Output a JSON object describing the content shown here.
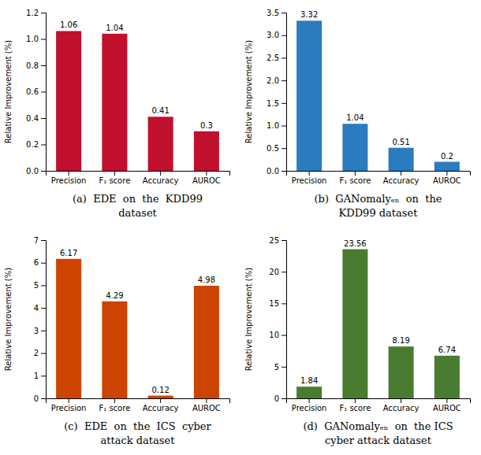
{
  "chart_data": [
    {
      "type": "bar",
      "title": "(a)  EDE  on  the  KDD99\ndataset",
      "categories": [
        "Precision",
        "F₁ score",
        "Accuracy",
        "AUROC"
      ],
      "values": [
        1.06,
        1.04,
        0.41,
        0.3
      ],
      "color": "#C0102E",
      "ylabel": "Relative Improvement (%)",
      "ylim": [
        0,
        1.2
      ],
      "yticks": [
        {
          "value": 0,
          "label": "0.0"
        },
        0.2,
        0.4,
        0.6,
        0.8,
        {
          "value": 1,
          "label": "1.0"
        },
        1.2
      ],
      "data_labels": true,
      "grid": false
    },
    {
      "type": "bar",
      "title": "(b)  GANomalyₑₙ  on  the\nKDD99 dataset",
      "categories": [
        "Precision",
        "F₁ score",
        "Accuracy",
        "AUROC"
      ],
      "values": [
        3.32,
        1.04,
        0.51,
        0.2
      ],
      "color": "#2b7bbf",
      "ylabel": "Relative Improvement (%)",
      "ylim": [
        0,
        3.5
      ],
      "yticks": [
        {
          "value": 0,
          "label": "0.0"
        },
        0.5,
        {
          "value": 1,
          "label": "1.0"
        },
        1.5,
        {
          "value": 2,
          "label": "2.0"
        },
        2.5,
        {
          "value": 3,
          "label": "3.0"
        },
        3.5
      ],
      "data_labels": true,
      "grid": false
    },
    {
      "type": "bar",
      "title": "(c)  EDE  on  the  ICS  cyber\nattack dataset",
      "categories": [
        "Precision",
        "F₁ score",
        "Accuracy",
        "AUROC"
      ],
      "values": [
        6.17,
        4.29,
        0.12,
        4.98
      ],
      "color": "#CC4400",
      "ylabel": "Relative Improvement (%)",
      "ylim": [
        0,
        7
      ],
      "yticks": [
        0,
        1,
        2,
        3,
        4,
        5,
        6,
        7
      ],
      "data_labels": true,
      "grid": false
    },
    {
      "type": "bar",
      "title": "(d)  GANomalyₑₙ  on  the ICS\ncyber attack dataset",
      "categories": [
        "Precision",
        "F₁ score",
        "Accuracy",
        "AUROC"
      ],
      "values": [
        1.84,
        23.56,
        8.19,
        6.74
      ],
      "color": "#4a7c2f",
      "ylabel": "Relative Improvement (%)",
      "ylim": [
        0,
        25
      ],
      "yticks": [
        0,
        5,
        10,
        15,
        20,
        25
      ],
      "data_labels": true,
      "grid": false
    }
  ]
}
